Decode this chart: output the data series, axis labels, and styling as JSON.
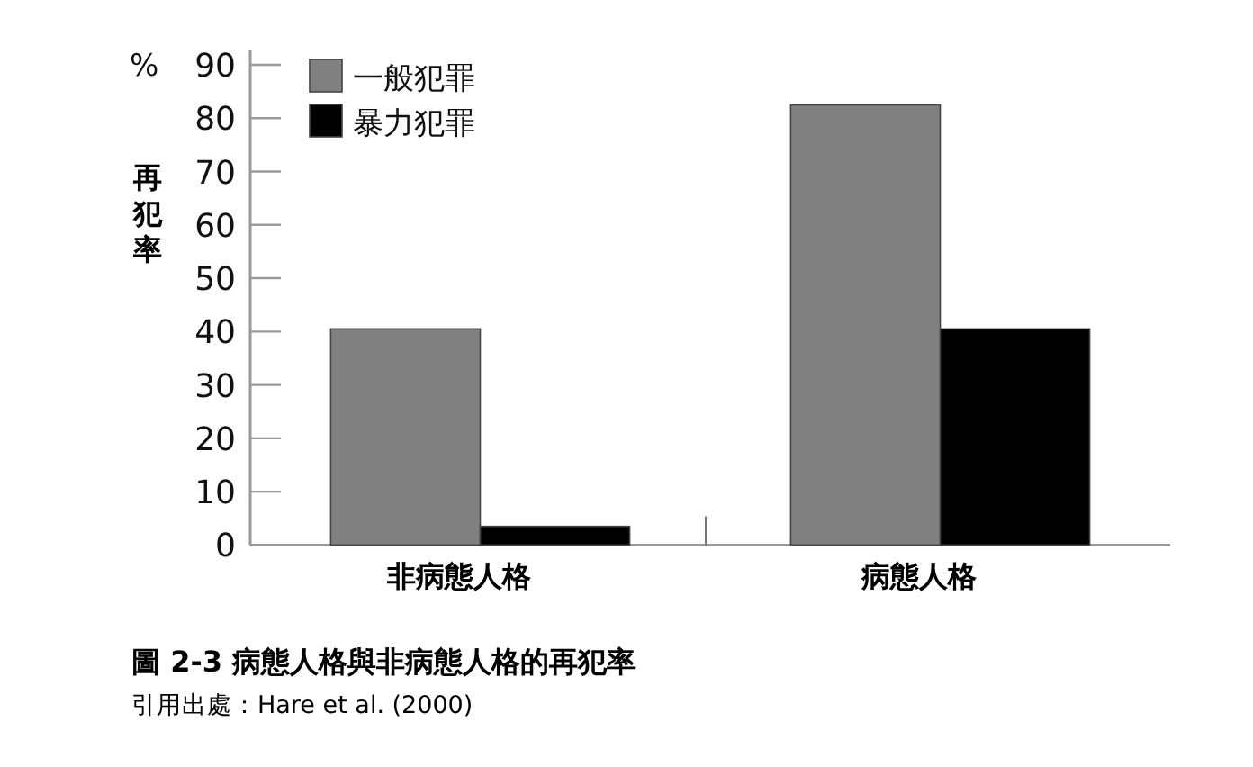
{
  "chart_data": {
    "type": "bar",
    "title": "圖 2-3 病態人格與非病態人格的再犯率",
    "ylabel": "再犯率",
    "annotations": [
      "%",
      "引用出處：Hare et al. (2000)"
    ],
    "categories": [
      "非病態人格",
      "病態人格"
    ],
    "series": [
      {
        "name": "一般犯罪",
        "color": "#808080",
        "values": [
          40.5,
          82.5
        ]
      },
      {
        "name": "暴力犯罪",
        "color": "#000000",
        "values": [
          3.5,
          40.5
        ]
      }
    ],
    "ylim": [
      0,
      90
    ],
    "yticks": [
      0,
      10,
      20,
      30,
      40,
      50,
      60,
      70,
      80,
      90
    ],
    "legend": "top left"
  }
}
